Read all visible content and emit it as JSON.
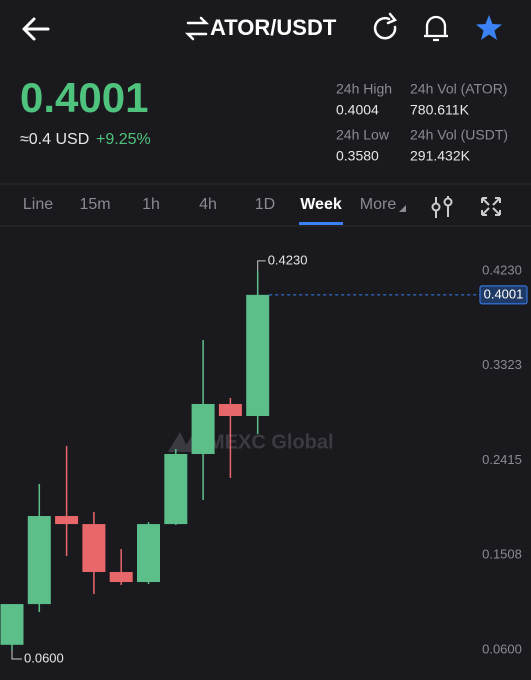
{
  "header": {
    "pair": "ATOR/USDT"
  },
  "price": {
    "last": "0.4001",
    "usd": "≈0.4 USD",
    "change": "+9.25%"
  },
  "stats": [
    {
      "label": "24h High",
      "value": "0.4004"
    },
    {
      "label": "24h Vol (ATOR)",
      "value": "780.611K"
    },
    {
      "label": "24h Low",
      "value": "0.3580"
    },
    {
      "label": "24h Vol  (USDT)",
      "value": "291.432K"
    }
  ],
  "tabs": [
    "Line",
    "15m",
    "1h",
    "4h",
    "1D",
    "Week",
    "More"
  ],
  "watermark": "MEXC Global",
  "chart_data": {
    "type": "candlestick",
    "open": [
      0.065,
      0.104,
      0.1883,
      0.1806,
      0.1347,
      0.1251,
      0.1806,
      0.2477,
      0.2956,
      0.2841
    ],
    "high": [
      0.104,
      0.219,
      0.2553,
      0.1921,
      0.1567,
      0.1825,
      0.2525,
      0.3569,
      0.3013,
      0.423
    ],
    "low": [
      0.06,
      0.0964,
      0.15,
      0.1136,
      0.1223,
      0.1232,
      0.1797,
      0.2036,
      0.2247,
      0.2669
    ],
    "close": [
      0.104,
      0.1883,
      0.1806,
      0.1347,
      0.1251,
      0.1806,
      0.2477,
      0.2956,
      0.2841,
      0.4001
    ],
    "up_color": "#5cbf8a",
    "down_color": "#e8676b",
    "ylim": [
      0.0313,
      0.4641
    ],
    "yticks": [
      {
        "value": 0.423,
        "label": "0.4230"
      },
      0.3323,
      0.2415,
      0.1508,
      {
        "value": 0.06,
        "label": "0.0600"
      }
    ],
    "last_price": 0.4001,
    "max_label": "0.4230",
    "min_label": "0.0600"
  }
}
